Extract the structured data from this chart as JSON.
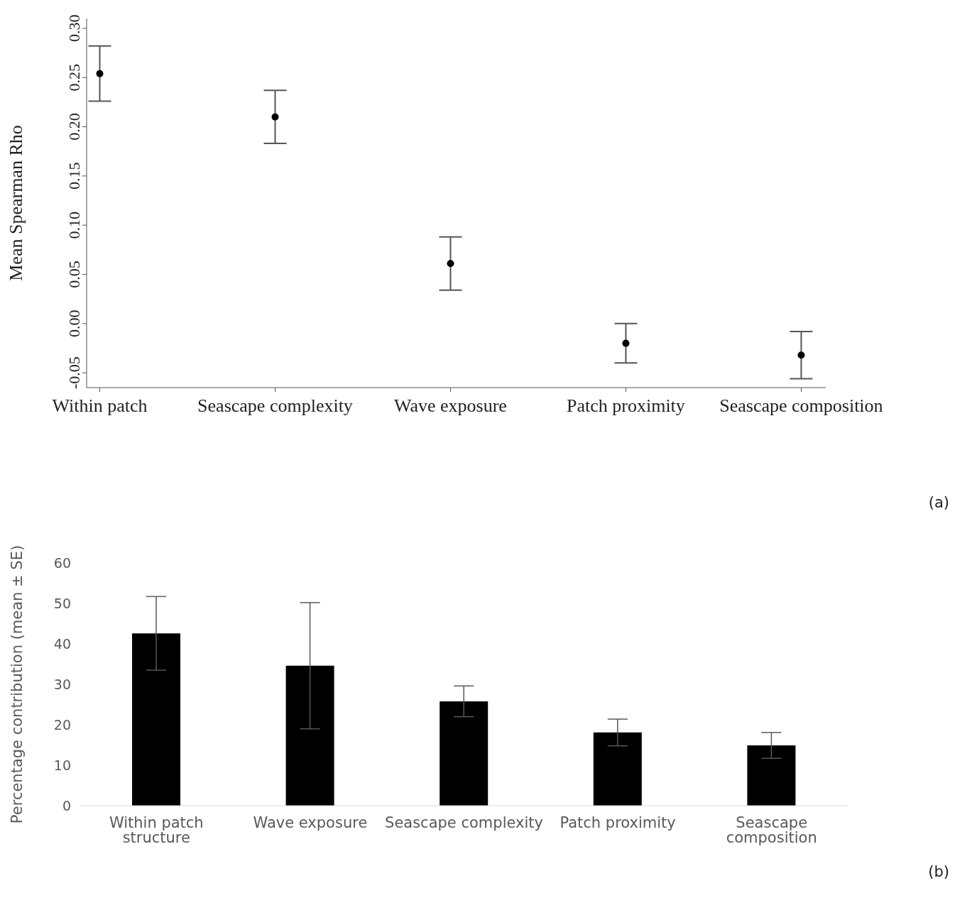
{
  "chart_data": [
    {
      "type": "scatter",
      "ylabel": "Mean Spearman Rho",
      "categories": [
        "Within patch",
        "Seascape complexity",
        "Wave exposure",
        "Patch proximity",
        "Seascape composition"
      ],
      "values": [
        0.254,
        0.21,
        0.061,
        -0.02,
        -0.032
      ],
      "errors": [
        0.028,
        0.027,
        0.027,
        0.02,
        0.024
      ],
      "color": "#000000",
      "marker": "circle",
      "ylim": [
        -0.065,
        0.31
      ],
      "yticks": [
        -0.05,
        {
          "value": 0,
          "label": "0.00"
        },
        0.05,
        {
          "value": 0.1,
          "label": "0.10"
        },
        0.15,
        {
          "value": 0.2,
          "label": "0.20"
        },
        0.25,
        {
          "value": 0.3,
          "label": "0.30"
        }
      ],
      "annotations": [
        "(a)"
      ]
    },
    {
      "type": "bar",
      "ylabel": "Percentage contribution (mean ± SE)",
      "categories": [
        "Within patch structure",
        "Wave exposure",
        "Seascape complexity",
        "Patch proximity",
        "Seascape composition"
      ],
      "values": [
        42.6,
        34.6,
        25.8,
        18.1,
        14.9
      ],
      "errors": [
        9.1,
        15.6,
        3.8,
        3.3,
        3.2
      ],
      "color": "#000000",
      "ylim": [
        0,
        60
      ],
      "yticks": [
        0,
        10,
        20,
        30,
        40,
        50,
        60
      ],
      "annotations": [
        "(b)"
      ]
    }
  ]
}
